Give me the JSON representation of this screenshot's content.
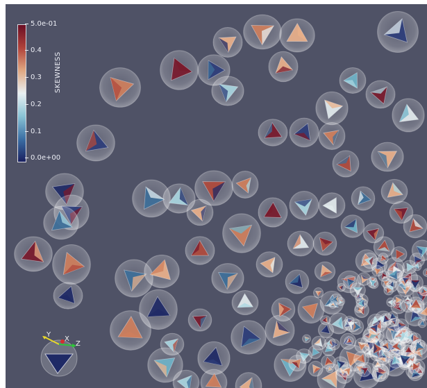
{
  "colorbar": {
    "title": "SKEWNESS",
    "ticks": [
      "5.0e-01",
      "0.4",
      "0.3",
      "0.2",
      "0.1",
      "0.0e+00"
    ],
    "colormap": [
      "#1a2060",
      "#3b6fa5",
      "#8ac4d6",
      "#e9f0f2",
      "#e0a882",
      "#b0423a",
      "#6a0d24"
    ]
  },
  "orientation_axes": {
    "x_label": "X",
    "y_label": "Y",
    "z_label": "Z",
    "x_color": "#d42e2e",
    "y_color": "#e8d82a",
    "z_color": "#2ec43a"
  },
  "viewport": {
    "background": "#4f5266"
  }
}
